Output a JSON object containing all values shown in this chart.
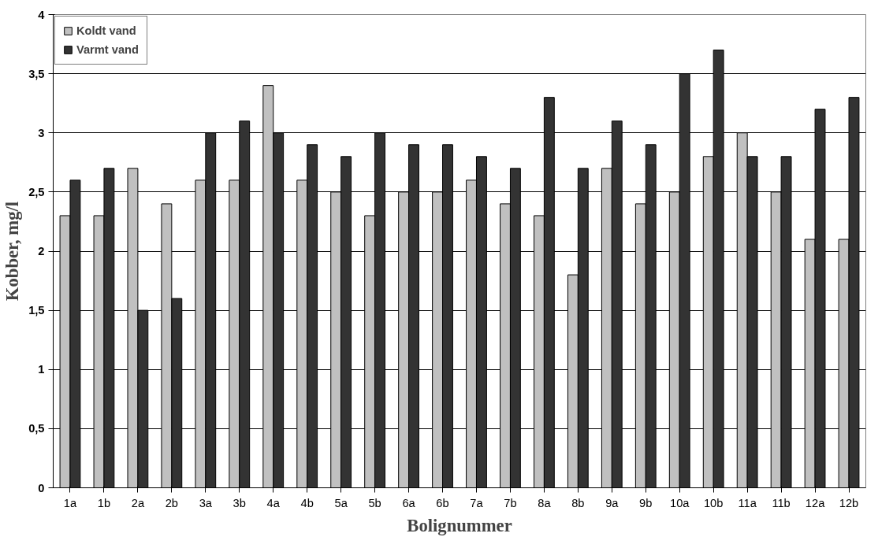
{
  "chart_data": {
    "type": "bar",
    "xlabel": "Bolignummer",
    "ylabel": "Kobber, mg/l",
    "categories": [
      "1a",
      "1b",
      "2a",
      "2b",
      "3a",
      "3b",
      "4a",
      "4b",
      "5a",
      "5b",
      "6a",
      "6b",
      "7a",
      "7b",
      "8a",
      "8b",
      "9a",
      "9b",
      "10a",
      "10b",
      "11a",
      "11b",
      "12a",
      "12b"
    ],
    "series": [
      {
        "name": "Koldt vand",
        "color": "#c0c0c0",
        "values": [
          2.3,
          2.3,
          2.7,
          2.4,
          2.6,
          2.6,
          3.4,
          2.6,
          2.5,
          2.3,
          2.5,
          2.5,
          2.6,
          2.4,
          2.3,
          1.8,
          2.7,
          2.4,
          2.5,
          2.8,
          3.0,
          2.5,
          2.1,
          2.1
        ]
      },
      {
        "name": "Varmt vand",
        "color": "#333333",
        "values": [
          2.6,
          2.7,
          1.5,
          1.6,
          3.0,
          3.1,
          3.0,
          2.9,
          2.8,
          3.0,
          2.9,
          2.9,
          2.8,
          2.7,
          3.3,
          2.7,
          3.1,
          2.9,
          3.5,
          3.7,
          2.8,
          2.8,
          3.2,
          3.3
        ]
      }
    ],
    "ylim": [
      0,
      4
    ],
    "yticks": [
      0,
      {
        "value": 0.5,
        "label": "0,5"
      },
      1,
      {
        "value": 1.5,
        "label": "1,5"
      },
      2,
      {
        "value": 2.5,
        "label": "2,5"
      },
      3,
      {
        "value": 3.5,
        "label": "3,5"
      },
      4
    ],
    "grid": "y",
    "legend": "top left"
  }
}
